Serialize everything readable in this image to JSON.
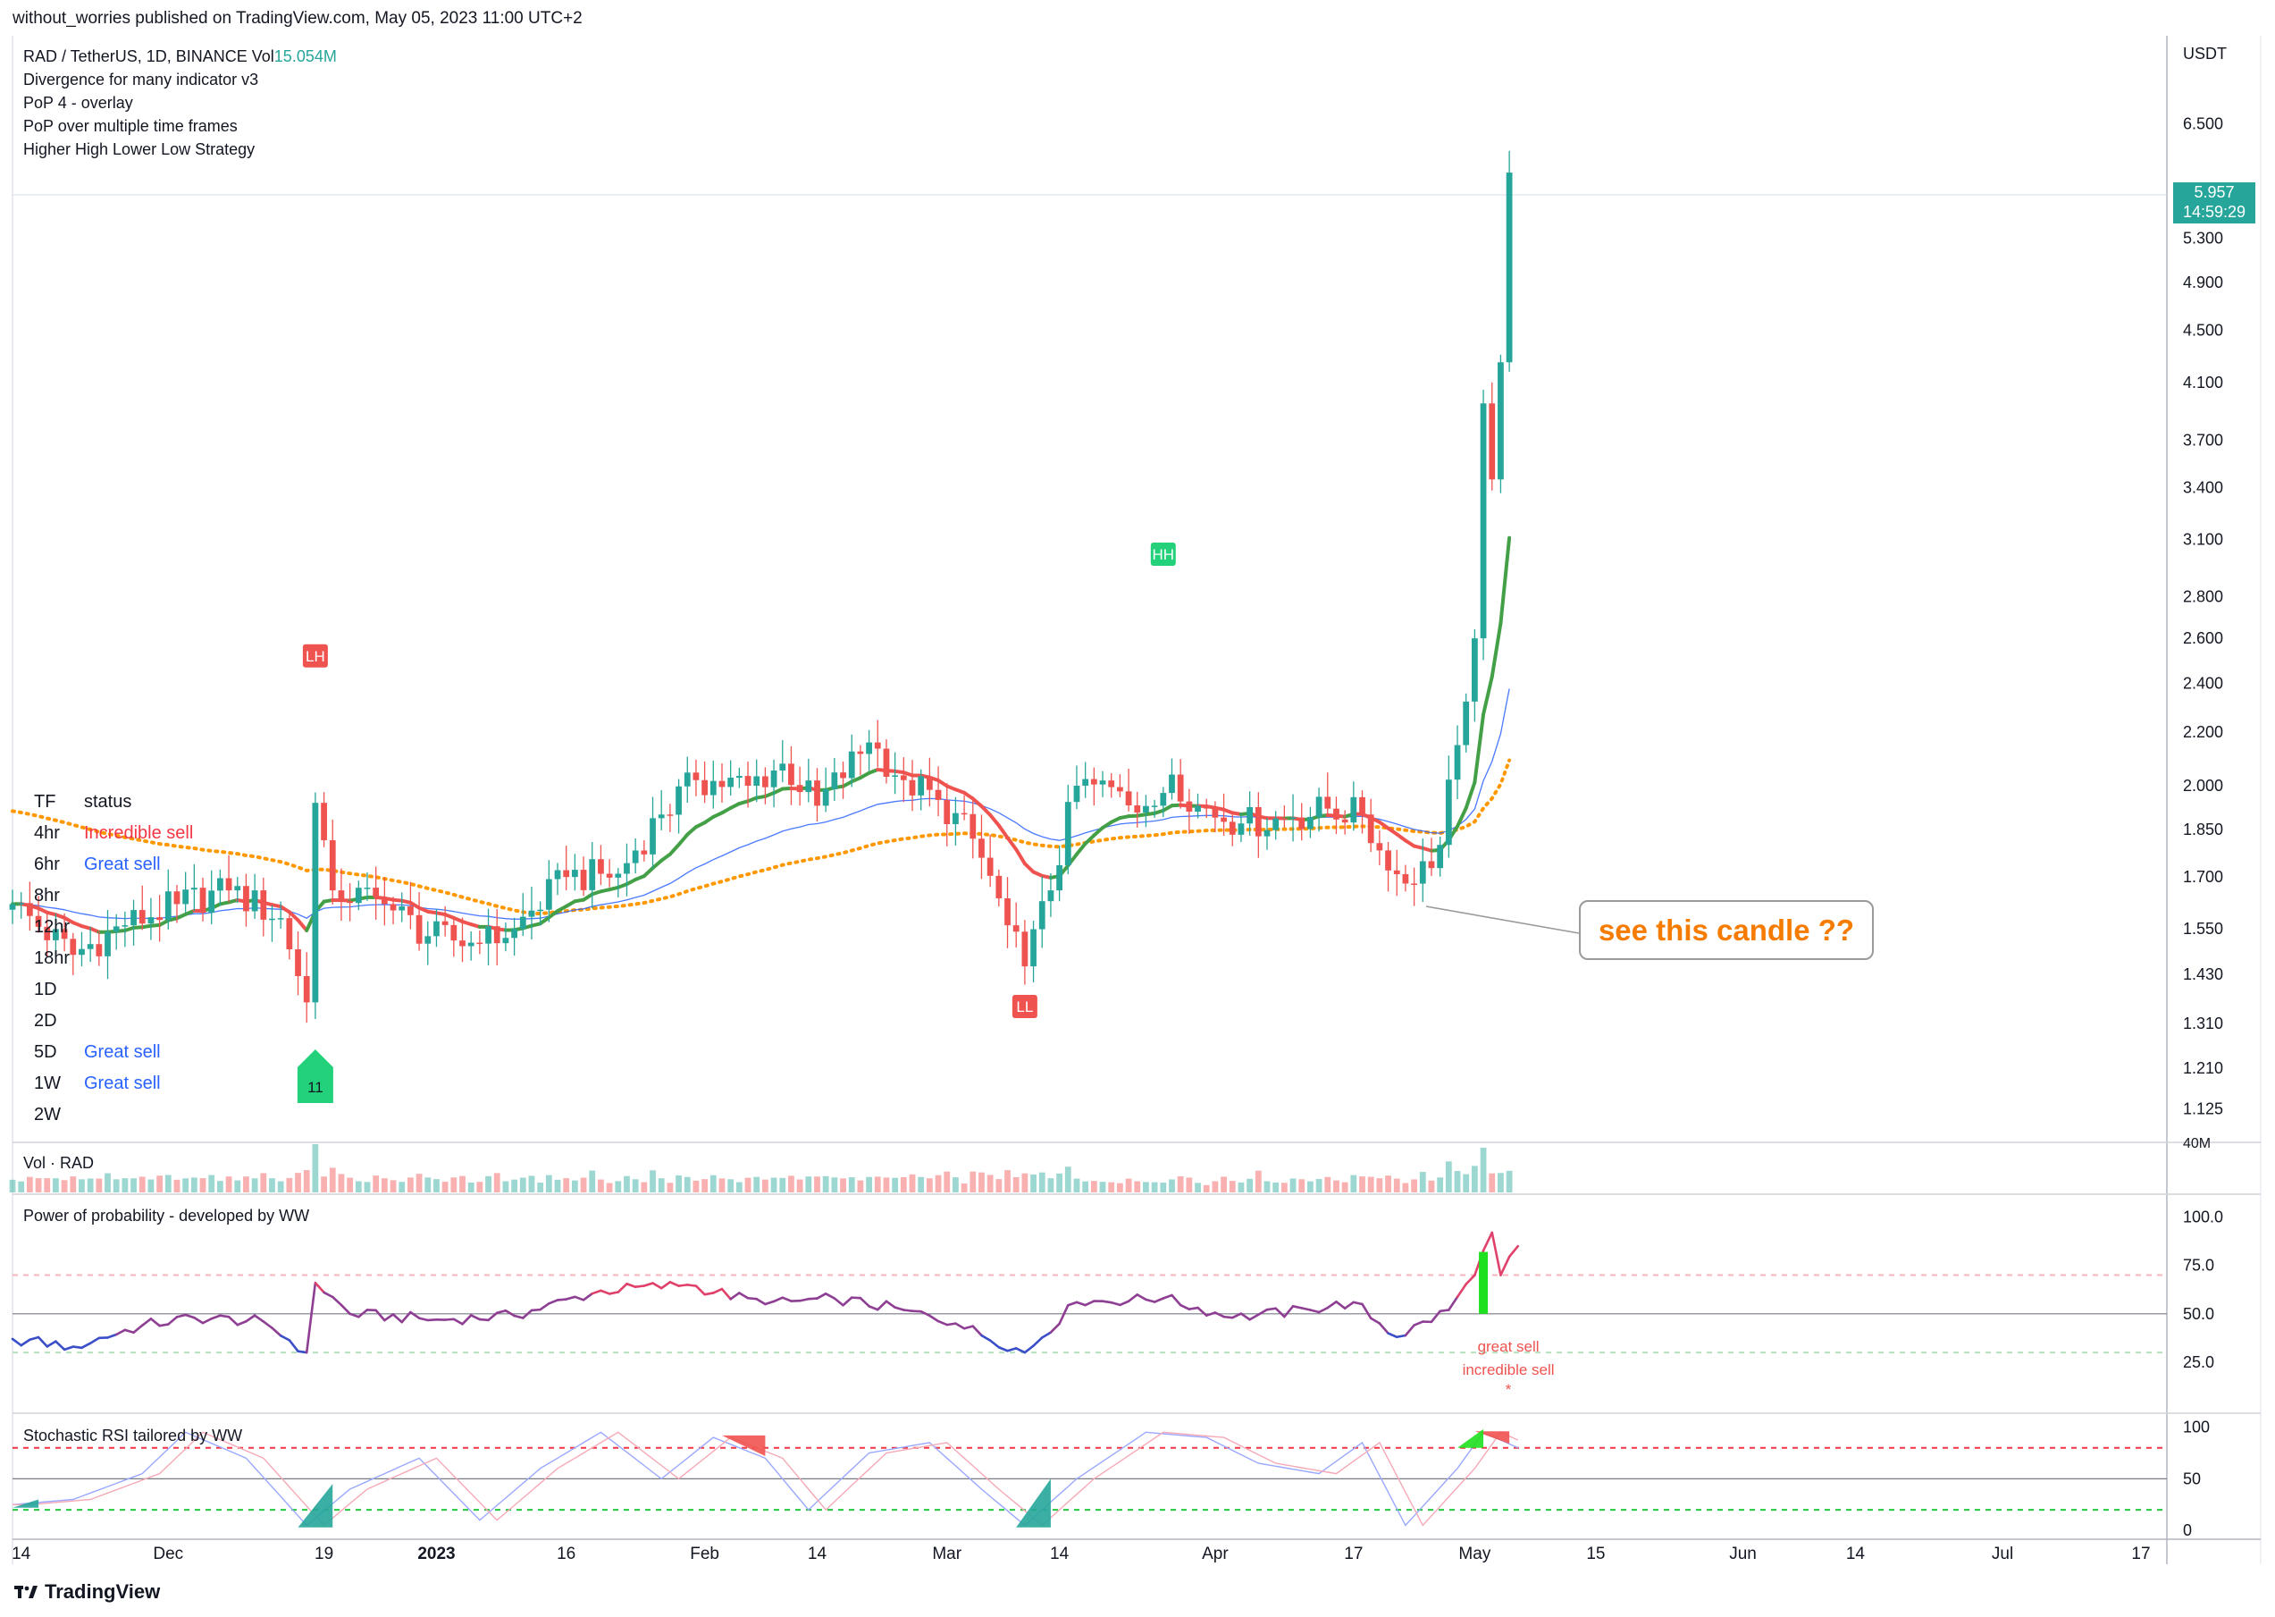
{
  "published": "without_worries published on TradingView.com, May 05, 2023 11:00 UTC+2",
  "header": {
    "symbol": "RAD / TetherUS, 1D, BINANCE",
    "vol_label": "Vol",
    "vol_value": "15.054M",
    "indicators": [
      "Divergence for many indicator v3",
      "PoP 4 - overlay",
      "PoP over multiple time frames",
      "Higher High Lower Low Strategy"
    ]
  },
  "status_table": {
    "header_tf": "TF",
    "header_status": "status",
    "rows": [
      {
        "tf": "4hr",
        "status": "Incredible sell",
        "color": "#f23645"
      },
      {
        "tf": "6hr",
        "status": "Great sell",
        "color": "#2962ff"
      },
      {
        "tf": "8hr",
        "status": "",
        "color": "#131722"
      },
      {
        "tf": "12hr",
        "status": "",
        "color": "#131722"
      },
      {
        "tf": "18hr",
        "status": "",
        "color": "#131722"
      },
      {
        "tf": "1D",
        "status": "",
        "color": "#131722"
      },
      {
        "tf": "2D",
        "status": "",
        "color": "#131722"
      },
      {
        "tf": "5D",
        "status": "Great sell",
        "color": "#2962ff"
      },
      {
        "tf": "1W",
        "status": "Great sell",
        "color": "#2962ff"
      },
      {
        "tf": "2W",
        "status": "",
        "color": "#131722"
      }
    ]
  },
  "callout": "see this candle ??",
  "price_tag": {
    "price": "5.957",
    "countdown": "14:59:29"
  },
  "panes": {
    "volume_title": "Vol · RAD",
    "pop_title": "Power of probability - developed by WW",
    "stoch_title": "Stochastic RSI tailored by WW",
    "pop_notes": [
      "great sell",
      "incredible sell",
      "*"
    ]
  },
  "markers": {
    "lh": "LH",
    "hh": "HH",
    "ll": "LL",
    "eleven": "11"
  },
  "footer": "TradingView",
  "colors": {
    "up": "#26a69a",
    "down": "#ef5350",
    "ema_up": "#43a047",
    "ema_down": "#ef5350",
    "ma_blue": "#2962ff",
    "dotted": "#ff9800",
    "green_label": "#22d17a",
    "red_label": "#ef5350"
  },
  "chart_data": [
    {
      "type": "candlestick",
      "title": "RAD / TetherUS, 1D, BINANCE",
      "y_unit": "USDT",
      "y_scale": "log",
      "ylim": [
        1.06,
        7.6
      ],
      "y_ticks": [
        1.125,
        1.21,
        1.31,
        1.43,
        1.55,
        1.7,
        1.85,
        2.0,
        2.2,
        2.4,
        2.6,
        2.8,
        3.1,
        3.4,
        3.7,
        4.1,
        4.5,
        4.9,
        5.3,
        6.5
      ],
      "y_tick_labels": [
        "1.125",
        "1.210",
        "1.310",
        "1.430",
        "1.550",
        "1.700",
        "1.850",
        "2.000",
        "2.200",
        "2.400",
        "2.600",
        "2.800",
        "3.100",
        "3.400",
        "3.700",
        "4.100",
        "4.500",
        "4.900",
        "5.300",
        "6.500"
      ],
      "x_start": "2022-11-13",
      "x_end": "2023-07-20",
      "x_ticks": [
        {
          "date": "2022-11-14",
          "label": "14"
        },
        {
          "date": "2022-12-01",
          "label": "Dec"
        },
        {
          "date": "2022-12-19",
          "label": "19"
        },
        {
          "date": "2023-01-01",
          "label": "2023"
        },
        {
          "date": "2023-01-16",
          "label": "16"
        },
        {
          "date": "2023-02-01",
          "label": "Feb"
        },
        {
          "date": "2023-02-14",
          "label": "14"
        },
        {
          "date": "2023-03-01",
          "label": "Mar"
        },
        {
          "date": "2023-03-14",
          "label": "14"
        },
        {
          "date": "2023-04-01",
          "label": "Apr"
        },
        {
          "date": "2023-04-17",
          "label": "17"
        },
        {
          "date": "2023-05-01",
          "label": "May"
        },
        {
          "date": "2023-05-15",
          "label": "15"
        },
        {
          "date": "2023-06-01",
          "label": "Jun"
        },
        {
          "date": "2023-06-14",
          "label": "14"
        },
        {
          "date": "2023-07-01",
          "label": "Jul"
        },
        {
          "date": "2023-07-17",
          "label": "17"
        }
      ],
      "price_anchors": [
        [
          "2022-11-13",
          1.62
        ],
        [
          "2022-11-20",
          1.48
        ],
        [
          "2022-11-26",
          1.56
        ],
        [
          "2022-12-02",
          1.62
        ],
        [
          "2022-12-08",
          1.66
        ],
        [
          "2022-12-14",
          1.58
        ],
        [
          "2022-12-17",
          1.36
        ],
        [
          "2022-12-18",
          1.94
        ],
        [
          "2022-12-20",
          1.66
        ],
        [
          "2022-12-26",
          1.62
        ],
        [
          "2022-12-31",
          1.53
        ],
        [
          "2023-01-06",
          1.51
        ],
        [
          "2023-01-10",
          1.55
        ],
        [
          "2023-01-16",
          1.7
        ],
        [
          "2023-01-22",
          1.71
        ],
        [
          "2023-01-27",
          1.9
        ],
        [
          "2023-01-31",
          2.02
        ],
        [
          "2023-02-06",
          2.0
        ],
        [
          "2023-02-10",
          2.08
        ],
        [
          "2023-02-14",
          1.93
        ],
        [
          "2023-02-20",
          2.16
        ],
        [
          "2023-02-24",
          2.02
        ],
        [
          "2023-02-28",
          1.95
        ],
        [
          "2023-03-04",
          1.82
        ],
        [
          "2023-03-08",
          1.56
        ],
        [
          "2023-03-10",
          1.45
        ],
        [
          "2023-03-13",
          1.66
        ],
        [
          "2023-03-16",
          2.0
        ],
        [
          "2023-03-21",
          1.98
        ],
        [
          "2023-03-25",
          1.93
        ],
        [
          "2023-03-27",
          2.04
        ],
        [
          "2023-03-30",
          1.93
        ],
        [
          "2023-04-04",
          1.87
        ],
        [
          "2023-04-10",
          1.89
        ],
        [
          "2023-04-14",
          1.92
        ],
        [
          "2023-04-18",
          1.9
        ],
        [
          "2023-04-21",
          1.72
        ],
        [
          "2023-04-24",
          1.68
        ],
        [
          "2023-04-27",
          1.8
        ],
        [
          "2023-04-29",
          2.15
        ],
        [
          "2023-05-01",
          2.6
        ],
        [
          "2023-05-02",
          3.95
        ],
        [
          "2023-05-03",
          3.45
        ],
        [
          "2023-05-04",
          4.25
        ],
        [
          "2023-05-05",
          5.957
        ]
      ],
      "marker_labels": [
        {
          "date": "2022-12-18",
          "price": 2.52,
          "text": "LH",
          "color": "#ef5350"
        },
        {
          "date": "2023-03-26",
          "price": 3.02,
          "text": "HH",
          "color": "#22d17a"
        },
        {
          "date": "2023-03-10",
          "price": 1.35,
          "text": "LL",
          "color": "#ef5350"
        },
        {
          "date": "2022-12-18",
          "price": 1.17,
          "text": "11",
          "color": "#22d17a"
        }
      ]
    },
    {
      "type": "bar",
      "title": "Vol · RAD",
      "y_tick_labels": [
        "40M"
      ],
      "note": "daily volume bars; spike on 2023-05-02 to ~40M"
    },
    {
      "type": "line",
      "title": "Power of probability - developed by WW",
      "ylim": [
        0,
        110
      ],
      "y_ticks": [
        25,
        50,
        75,
        100
      ],
      "y_tick_labels": [
        "25.0",
        "50.0",
        "75.0",
        "100.0"
      ],
      "levels": [
        30,
        50,
        70
      ],
      "anchors": [
        [
          "2022-11-13",
          37
        ],
        [
          "2022-11-20",
          33
        ],
        [
          "2022-11-28",
          44
        ],
        [
          "2022-12-04",
          48
        ],
        [
          "2022-12-12",
          46
        ],
        [
          "2022-12-17",
          30
        ],
        [
          "2022-12-18",
          66
        ],
        [
          "2022-12-22",
          50
        ],
        [
          "2023-01-01",
          47
        ],
        [
          "2023-01-10",
          49
        ],
        [
          "2023-01-20",
          62
        ],
        [
          "2023-01-30",
          65
        ],
        [
          "2023-02-08",
          55
        ],
        [
          "2023-02-16",
          58
        ],
        [
          "2023-02-24",
          52
        ],
        [
          "2023-03-02",
          45
        ],
        [
          "2023-03-10",
          30
        ],
        [
          "2023-03-16",
          56
        ],
        [
          "2023-03-26",
          58
        ],
        [
          "2023-04-03",
          48
        ],
        [
          "2023-04-12",
          52
        ],
        [
          "2023-04-17",
          56
        ],
        [
          "2023-04-22",
          38
        ],
        [
          "2023-04-28",
          52
        ],
        [
          "2023-05-01",
          70
        ],
        [
          "2023-05-03",
          92
        ],
        [
          "2023-05-04",
          70
        ],
        [
          "2023-05-06",
          85
        ]
      ]
    },
    {
      "type": "line",
      "title": "Stochastic RSI tailored by WW",
      "ylim": [
        -5,
        110
      ],
      "y_ticks": [
        0,
        50,
        100
      ],
      "y_tick_labels": [
        "0",
        "50",
        "100"
      ],
      "levels": [
        20,
        50,
        80
      ],
      "anchors": [
        [
          "2022-11-13",
          25
        ],
        [
          "2022-11-20",
          30
        ],
        [
          "2022-11-28",
          55
        ],
        [
          "2022-12-03",
          95
        ],
        [
          "2022-12-10",
          70
        ],
        [
          "2022-12-17",
          5
        ],
        [
          "2022-12-22",
          40
        ],
        [
          "2022-12-30",
          70
        ],
        [
          "2023-01-06",
          10
        ],
        [
          "2023-01-13",
          60
        ],
        [
          "2023-01-20",
          95
        ],
        [
          "2023-01-27",
          50
        ],
        [
          "2023-02-02",
          90
        ],
        [
          "2023-02-08",
          70
        ],
        [
          "2023-02-13",
          20
        ],
        [
          "2023-02-20",
          75
        ],
        [
          "2023-02-27",
          85
        ],
        [
          "2023-03-05",
          40
        ],
        [
          "2023-03-10",
          5
        ],
        [
          "2023-03-16",
          50
        ],
        [
          "2023-03-24",
          95
        ],
        [
          "2023-03-31",
          90
        ],
        [
          "2023-04-06",
          65
        ],
        [
          "2023-04-13",
          55
        ],
        [
          "2023-04-18",
          85
        ],
        [
          "2023-04-23",
          5
        ],
        [
          "2023-04-29",
          60
        ],
        [
          "2023-05-02",
          95
        ],
        [
          "2023-05-06",
          80
        ]
      ]
    }
  ]
}
